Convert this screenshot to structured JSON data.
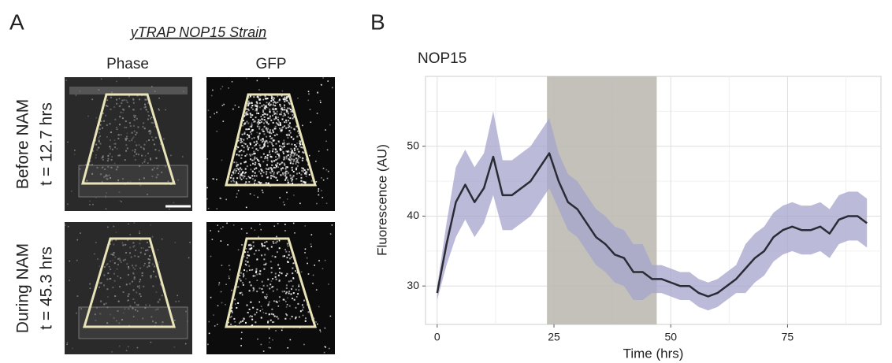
{
  "panel_a": {
    "label": "A",
    "title": "yTRAP NOP15 Strain",
    "columns": [
      "Phase",
      "GFP"
    ],
    "rows": [
      [
        "Before NAM",
        "t = 12.7 hrs"
      ],
      [
        "During NAM",
        "t = 45.3 hrs"
      ]
    ]
  },
  "panel_b_label": "B",
  "chart_data": {
    "type": "line",
    "title": "NOP15",
    "x_label": "Time (hrs)",
    "y_label": "Fluorescence (AU)",
    "x": [
      0,
      2,
      4,
      6,
      8,
      10,
      12,
      14,
      16,
      18,
      20,
      22,
      24,
      26,
      28,
      30,
      32,
      34,
      36,
      38,
      40,
      42,
      44,
      46,
      48,
      50,
      52,
      54,
      56,
      58,
      60,
      62,
      64,
      66,
      68,
      70,
      72,
      74,
      76,
      78,
      80,
      82,
      84,
      86,
      88,
      90,
      92
    ],
    "series": [
      {
        "color": "#2b2b36",
        "values": [
          29,
          36,
          42,
          44.5,
          42,
          44,
          48.5,
          43,
          43,
          44,
          45,
          47,
          49,
          45,
          42,
          41,
          39,
          37,
          36,
          34.5,
          34,
          32,
          32,
          31,
          31,
          30.5,
          30,
          30,
          29,
          28.5,
          29,
          30,
          31,
          32.5,
          34,
          35,
          37,
          38,
          38.5,
          38,
          38,
          38.5,
          37.5,
          39.5,
          40,
          40,
          39
        ]
      }
    ],
    "band": {
      "color": "#a4a4cc",
      "lower": [
        28,
        33,
        37,
        39.5,
        37,
        39,
        43,
        38,
        38,
        39,
        40,
        42,
        44,
        41,
        38,
        37,
        35,
        33,
        32,
        30.5,
        30,
        28,
        28,
        29,
        29,
        28.5,
        28,
        28,
        27,
        26.5,
        27,
        28,
        29,
        29,
        30.5,
        31.5,
        33.5,
        34.5,
        35,
        34.5,
        34.5,
        35,
        34,
        36,
        36.5,
        36.5,
        35.5
      ],
      "upper": [
        30,
        39,
        47,
        49.5,
        47,
        49,
        55,
        48,
        48,
        49,
        50,
        52,
        54,
        49,
        46,
        45,
        43,
        41,
        40,
        38.5,
        38,
        36,
        36,
        33,
        33,
        32.5,
        32,
        32,
        31,
        30.5,
        31,
        32,
        33,
        36,
        37.5,
        38.5,
        40.5,
        41.5,
        42,
        41.5,
        41.5,
        42,
        41,
        43,
        43.5,
        43.5,
        42.5
      ]
    },
    "shade": {
      "x": [
        23.5,
        47
      ],
      "color": "#bdbab3"
    },
    "xlim": [
      -2.5,
      95
    ],
    "ylim": [
      24.5,
      60
    ],
    "xticks": [
      0,
      25,
      50,
      75
    ],
    "yticks": [
      30,
      40,
      50
    ],
    "minor_xticks": [
      12.5,
      37.5,
      62.5,
      87.5
    ],
    "minor_yticks": [
      35,
      45,
      55
    ],
    "grid": true
  }
}
